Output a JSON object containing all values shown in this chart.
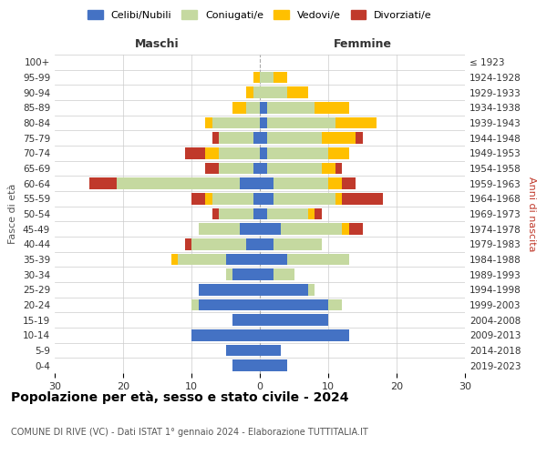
{
  "age_groups": [
    "0-4",
    "5-9",
    "10-14",
    "15-19",
    "20-24",
    "25-29",
    "30-34",
    "35-39",
    "40-44",
    "45-49",
    "50-54",
    "55-59",
    "60-64",
    "65-69",
    "70-74",
    "75-79",
    "80-84",
    "85-89",
    "90-94",
    "95-99",
    "100+"
  ],
  "birth_years": [
    "2019-2023",
    "2014-2018",
    "2009-2013",
    "2004-2008",
    "1999-2003",
    "1994-1998",
    "1989-1993",
    "1984-1988",
    "1979-1983",
    "1974-1978",
    "1969-1973",
    "1964-1968",
    "1959-1963",
    "1954-1958",
    "1949-1953",
    "1944-1948",
    "1939-1943",
    "1934-1938",
    "1929-1933",
    "1924-1928",
    "≤ 1923"
  ],
  "colors": {
    "celibe": "#4472c4",
    "coniugato": "#c5d9a0",
    "vedovo": "#ffc000",
    "divorziato": "#c0392b"
  },
  "maschi": {
    "celibe": [
      4,
      5,
      10,
      4,
      9,
      9,
      4,
      5,
      2,
      3,
      1,
      1,
      3,
      1,
      0,
      1,
      0,
      0,
      0,
      0,
      0
    ],
    "coniugato": [
      0,
      0,
      0,
      0,
      1,
      0,
      1,
      7,
      8,
      6,
      5,
      6,
      18,
      5,
      6,
      5,
      7,
      2,
      1,
      0,
      0
    ],
    "vedovo": [
      0,
      0,
      0,
      0,
      0,
      0,
      0,
      1,
      0,
      0,
      0,
      1,
      0,
      0,
      2,
      0,
      1,
      2,
      1,
      1,
      0
    ],
    "divorziato": [
      0,
      0,
      0,
      0,
      0,
      0,
      0,
      0,
      1,
      0,
      1,
      2,
      4,
      2,
      3,
      1,
      0,
      0,
      0,
      0,
      0
    ]
  },
  "femmine": {
    "nubile": [
      4,
      3,
      13,
      10,
      10,
      7,
      2,
      4,
      2,
      3,
      1,
      2,
      2,
      1,
      1,
      1,
      1,
      1,
      0,
      0,
      0
    ],
    "coniugata": [
      0,
      0,
      0,
      0,
      2,
      1,
      3,
      9,
      7,
      9,
      6,
      9,
      8,
      8,
      9,
      8,
      10,
      7,
      4,
      2,
      0
    ],
    "vedova": [
      0,
      0,
      0,
      0,
      0,
      0,
      0,
      0,
      0,
      1,
      1,
      1,
      2,
      2,
      3,
      5,
      6,
      5,
      3,
      2,
      0
    ],
    "divorziata": [
      0,
      0,
      0,
      0,
      0,
      0,
      0,
      0,
      0,
      2,
      1,
      6,
      2,
      1,
      0,
      1,
      0,
      0,
      0,
      0,
      0
    ]
  },
  "xlim": 30,
  "title": "Popolazione per età, sesso e stato civile - 2024",
  "subtitle": "COMUNE DI RIVE (VC) - Dati ISTAT 1° gennaio 2024 - Elaborazione TUTTITALIA.IT",
  "ylabel_left": "Fasce di età",
  "ylabel_right": "Anni di nascita",
  "xlabel_left": "Maschi",
  "xlabel_right": "Femmine",
  "legend_labels": [
    "Celibi/Nubili",
    "Coniugati/e",
    "Vedovi/e",
    "Divorziati/e"
  ],
  "bg_color": "#ffffff",
  "grid_color": "#cccccc",
  "center_line_color": "#aaaaaa"
}
